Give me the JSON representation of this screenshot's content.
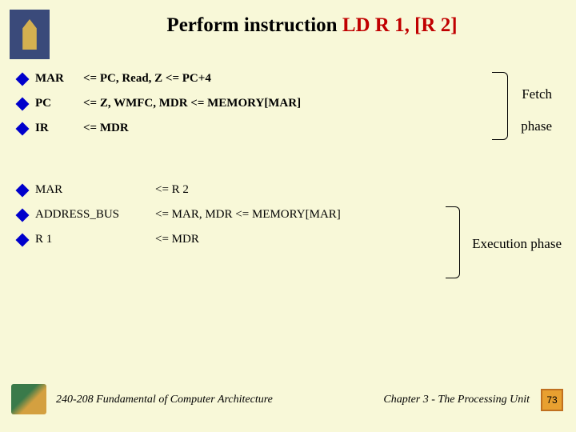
{
  "title": {
    "part1": "Perform instruction  ",
    "part2": "LD R 1, [R 2]"
  },
  "fetch": {
    "rows": [
      {
        "c1": "MAR",
        "c2": "<= PC, Read, Z <= PC+4"
      },
      {
        "c1": "PC",
        "c2": "<= Z, WMFC, MDR <= MEMORY[MAR]"
      },
      {
        "c1": "IR",
        "c2": "<= MDR"
      }
    ],
    "label1": "Fetch",
    "label2": "phase"
  },
  "exec": {
    "rows": [
      {
        "c1": "MAR",
        "c2": "<= R 2"
      },
      {
        "c1": "ADDRESS_BUS",
        "c2": "<= MAR, MDR <= MEMORY[MAR]"
      },
      {
        "c1": "R 1",
        "c2": "<= MDR"
      }
    ],
    "label": "Execution phase"
  },
  "footer": {
    "left": "240-208 Fundamental of Computer Architecture",
    "right": "Chapter 3 - The Processing Unit",
    "page": "73"
  }
}
